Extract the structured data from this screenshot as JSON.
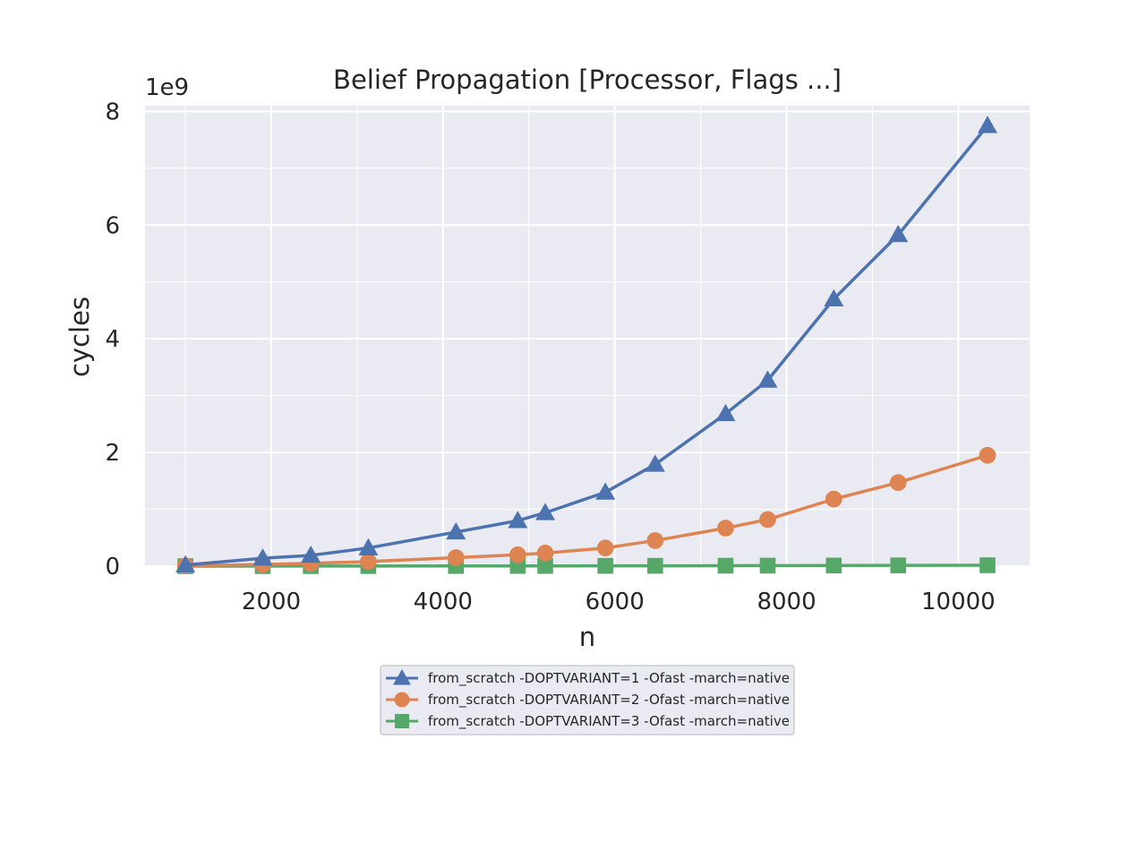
{
  "chart_data": {
    "type": "line",
    "title": "Belief Propagation [Processor, Flags ...]",
    "xlabel": "n",
    "ylabel": "cycles",
    "y_offset_label": "1e9",
    "xlim": [
      530,
      10830
    ],
    "ylim": [
      0,
      8.1
    ],
    "x_ticks": [
      2000,
      4000,
      6000,
      8000,
      10000
    ],
    "x_tick_labels": [
      "2000",
      "4000",
      "6000",
      "8000",
      "10000"
    ],
    "y_ticks": [
      0,
      2,
      4,
      6,
      8
    ],
    "y_tick_labels": [
      "0",
      "2",
      "4",
      "6",
      "8"
    ],
    "grid": true,
    "legend_position": "below chart",
    "x": [
      1000,
      1900,
      2460,
      3130,
      4150,
      4870,
      5190,
      5890,
      6470,
      7290,
      7780,
      8550,
      9300,
      10340
    ],
    "series": [
      {
        "name": "from_scratch -DOPTVARIANT=1 -Ofast -march=native",
        "color": "#4c72b0",
        "marker": "triangle",
        "values": [
          0.02,
          0.14,
          0.19,
          0.32,
          0.6,
          0.8,
          0.94,
          1.3,
          1.79,
          2.68,
          3.27,
          4.7,
          5.83,
          7.75
        ]
      },
      {
        "name": "from_scratch -DOPTVARIANT=2 -Ofast -march=native",
        "color": "#dd8452",
        "marker": "circle",
        "values": [
          0.005,
          0.03,
          0.05,
          0.08,
          0.15,
          0.2,
          0.23,
          0.32,
          0.45,
          0.67,
          0.82,
          1.18,
          1.47,
          1.95
        ]
      },
      {
        "name": "from_scratch -DOPTVARIANT=3 -Ofast -march=native",
        "color": "#55a868",
        "marker": "square",
        "values": [
          0.0,
          0.001,
          0.001,
          0.002,
          0.003,
          0.004,
          0.004,
          0.005,
          0.006,
          0.008,
          0.009,
          0.011,
          0.013,
          0.016
        ]
      }
    ]
  }
}
